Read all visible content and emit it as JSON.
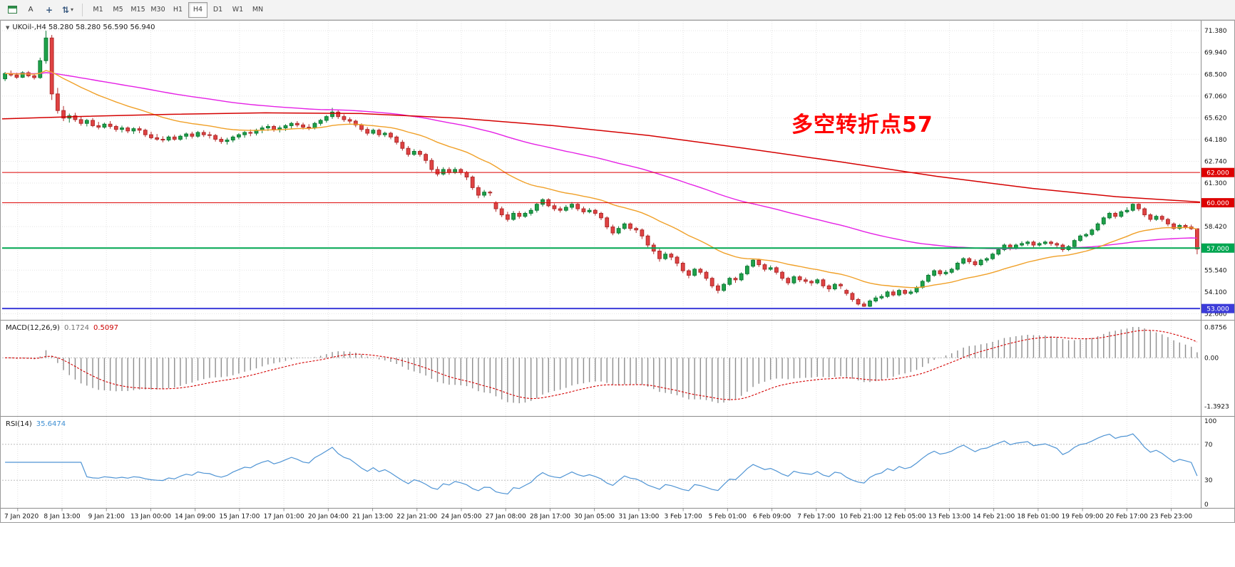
{
  "toolbar": {
    "text_tool_label": "A",
    "timeframes": [
      {
        "label": "M1",
        "active": false
      },
      {
        "label": "M5",
        "active": false
      },
      {
        "label": "M15",
        "active": false
      },
      {
        "label": "M30",
        "active": false
      },
      {
        "label": "H1",
        "active": false
      },
      {
        "label": "H4",
        "active": true
      },
      {
        "label": "D1",
        "active": false
      },
      {
        "label": "W1",
        "active": false
      },
      {
        "label": "MN",
        "active": false
      }
    ]
  },
  "chart": {
    "symbol_title": "UKOil-,H4 58.280 58.280 56.590 56.940",
    "annotation": {
      "text": "多空转折点57",
      "color": "#ff0000"
    },
    "macd_label": {
      "name": "MACD(12,26,9)",
      "value": "0.1724",
      "signal_value": "0.5097"
    },
    "rsi_label": {
      "name": "RSI(14)",
      "value": "35.6474"
    }
  },
  "chart_data": {
    "type": "candlestick",
    "symbol": "UKOil-",
    "timeframe": "H4",
    "last_ohlc": {
      "open": "58.280",
      "high": "58.280",
      "low": "56.590",
      "close": "56.940"
    },
    "colors": {
      "up": "#1fa24a",
      "up_border": "#0c7a34",
      "down": "#e04343",
      "down_border": "#b02a2a",
      "grid": "#e3e3e3"
    },
    "y_axis": {
      "min": 52.3,
      "max": 72.0,
      "ticks": [
        "71.380",
        "69.940",
        "68.500",
        "67.060",
        "65.620",
        "64.180",
        "62.740",
        "61.300",
        "59.860",
        "58.420",
        "56.980",
        "55.540",
        "54.100",
        "52.660"
      ]
    },
    "x_ticks": [
      "7 Jan 2020",
      "8 Jan 13:00",
      "9 Jan 21:00",
      "13 Jan 00:00",
      "14 Jan 09:00",
      "15 Jan 17:00",
      "17 Jan 01:00",
      "20 Jan 04:00",
      "21 Jan 13:00",
      "22 Jan 21:00",
      "24 Jan 05:00",
      "27 Jan 08:00",
      "28 Jan 17:00",
      "30 Jan 05:00",
      "31 Jan 13:00",
      "3 Feb 17:00",
      "5 Feb 01:00",
      "6 Feb 09:00",
      "7 Feb 17:00",
      "10 Feb 21:00",
      "12 Feb 05:00",
      "13 Feb 13:00",
      "14 Feb 21:00",
      "18 Feb 01:00",
      "19 Feb 09:00",
      "20 Feb 17:00",
      "23 Feb 23:00"
    ],
    "levels": [
      {
        "value": 62.0,
        "label": "62.000",
        "color": "#dd0000",
        "width": 1
      },
      {
        "value": 60.0,
        "label": "60.000",
        "color": "#dd0000",
        "width": 1
      },
      {
        "value": 57.0,
        "label": "57.000",
        "color": "#00a651",
        "width": 2
      },
      {
        "value": 53.0,
        "label": "53.000",
        "color": "#3c3cd9",
        "width": 2
      }
    ],
    "moving_averages": {
      "fast": {
        "type": "ema",
        "period": 25,
        "color": "#f0a028"
      },
      "medium": {
        "type": "ema",
        "period": 90,
        "color": "#e520e5"
      },
      "slow_red": {
        "color": "#d40000",
        "points": [
          [
            0.0,
            65.55
          ],
          [
            0.06,
            65.7
          ],
          [
            0.14,
            65.85
          ],
          [
            0.22,
            65.95
          ],
          [
            0.3,
            65.9
          ],
          [
            0.38,
            65.6
          ],
          [
            0.46,
            65.1
          ],
          [
            0.54,
            64.45
          ],
          [
            0.62,
            63.6
          ],
          [
            0.7,
            62.7
          ],
          [
            0.78,
            61.75
          ],
          [
            0.86,
            60.95
          ],
          [
            0.93,
            60.4
          ],
          [
            1.0,
            60.05
          ]
        ]
      }
    },
    "macd": {
      "fast": 12,
      "slow": 26,
      "signal": 9,
      "value": 0.1724,
      "signal_value": 0.5097,
      "range": [
        -1.65,
        1.05
      ],
      "ticks": [
        "0.8756",
        "0.00",
        "-1.3923"
      ],
      "hist_color": "#8e8e8e",
      "signal_color": "#d40000"
    },
    "rsi": {
      "period": 14,
      "value": 35.6474,
      "range": [
        0,
        100
      ],
      "ticks": [
        100,
        70,
        30,
        0
      ],
      "levels": [
        70,
        30
      ],
      "color": "#4f94d4"
    },
    "candles": [
      [
        68.2,
        68.65,
        68.05,
        68.55
      ],
      [
        68.55,
        68.75,
        68.35,
        68.45
      ],
      [
        68.45,
        68.6,
        68.2,
        68.3
      ],
      [
        68.3,
        68.7,
        68.25,
        68.6
      ],
      [
        68.6,
        68.72,
        68.3,
        68.4
      ],
      [
        68.4,
        68.55,
        68.15,
        68.28
      ],
      [
        68.28,
        69.6,
        68.2,
        69.4
      ],
      [
        69.4,
        71.38,
        69.2,
        70.9
      ],
      [
        70.9,
        71.1,
        66.8,
        67.2
      ],
      [
        67.2,
        67.6,
        65.9,
        66.1
      ],
      [
        66.1,
        66.4,
        65.4,
        65.6
      ],
      [
        65.6,
        65.9,
        65.3,
        65.75
      ],
      [
        65.75,
        65.95,
        65.35,
        65.5
      ],
      [
        65.5,
        65.7,
        65.1,
        65.25
      ],
      [
        65.25,
        65.55,
        65.05,
        65.45
      ],
      [
        65.45,
        65.6,
        65.0,
        65.1
      ],
      [
        65.1,
        65.35,
        64.85,
        65.0
      ],
      [
        65.0,
        65.3,
        64.9,
        65.2
      ],
      [
        65.2,
        65.4,
        64.9,
        65.05
      ],
      [
        65.05,
        65.15,
        64.7,
        64.85
      ],
      [
        64.85,
        65.1,
        64.65,
        64.95
      ],
      [
        64.95,
        65.05,
        64.6,
        64.75
      ],
      [
        64.75,
        65.0,
        64.55,
        64.9
      ],
      [
        64.9,
        65.05,
        64.6,
        64.8
      ],
      [
        64.8,
        64.9,
        64.35,
        64.5
      ],
      [
        64.5,
        64.7,
        64.2,
        64.3
      ],
      [
        64.3,
        64.55,
        64.1,
        64.2
      ],
      [
        64.2,
        64.4,
        64.0,
        64.15
      ],
      [
        64.15,
        64.45,
        64.05,
        64.35
      ],
      [
        64.35,
        64.5,
        64.1,
        64.2
      ],
      [
        64.2,
        64.5,
        64.1,
        64.4
      ],
      [
        64.4,
        64.65,
        64.2,
        64.55
      ],
      [
        64.55,
        64.7,
        64.25,
        64.4
      ],
      [
        64.4,
        64.75,
        64.3,
        64.65
      ],
      [
        64.65,
        64.8,
        64.35,
        64.5
      ],
      [
        64.5,
        64.7,
        64.25,
        64.45
      ],
      [
        64.45,
        64.55,
        64.05,
        64.2
      ],
      [
        64.2,
        64.35,
        63.9,
        64.05
      ],
      [
        64.05,
        64.3,
        63.85,
        64.15
      ],
      [
        64.15,
        64.45,
        64.0,
        64.35
      ],
      [
        64.35,
        64.6,
        64.2,
        64.5
      ],
      [
        64.5,
        64.75,
        64.3,
        64.65
      ],
      [
        64.65,
        64.85,
        64.4,
        64.6
      ],
      [
        64.6,
        64.9,
        64.45,
        64.8
      ],
      [
        64.8,
        65.1,
        64.6,
        64.95
      ],
      [
        64.95,
        65.2,
        64.75,
        65.05
      ],
      [
        65.05,
        65.15,
        64.7,
        64.85
      ],
      [
        64.85,
        65.1,
        64.65,
        64.95
      ],
      [
        64.95,
        65.2,
        64.75,
        65.1
      ],
      [
        65.1,
        65.35,
        64.9,
        65.25
      ],
      [
        65.25,
        65.4,
        65.0,
        65.15
      ],
      [
        65.15,
        65.3,
        64.85,
        65.0
      ],
      [
        65.0,
        65.2,
        64.8,
        64.95
      ],
      [
        64.95,
        65.35,
        64.85,
        65.25
      ],
      [
        65.25,
        65.55,
        65.1,
        65.45
      ],
      [
        65.45,
        65.8,
        65.3,
        65.7
      ],
      [
        65.7,
        66.28,
        65.55,
        66.0
      ],
      [
        66.0,
        66.15,
        65.55,
        65.7
      ],
      [
        65.7,
        65.85,
        65.35,
        65.5
      ],
      [
        65.5,
        65.65,
        65.25,
        65.4
      ],
      [
        65.4,
        65.5,
        65.0,
        65.15
      ],
      [
        65.15,
        65.25,
        64.7,
        64.85
      ],
      [
        64.85,
        65.0,
        64.45,
        64.6
      ],
      [
        64.6,
        64.9,
        64.5,
        64.8
      ],
      [
        64.8,
        64.9,
        64.35,
        64.5
      ],
      [
        64.5,
        64.7,
        64.35,
        64.6
      ],
      [
        64.6,
        64.7,
        64.2,
        64.35
      ],
      [
        64.35,
        64.45,
        63.85,
        64.0
      ],
      [
        64.0,
        64.15,
        63.45,
        63.6
      ],
      [
        63.6,
        63.75,
        63.05,
        63.2
      ],
      [
        63.2,
        63.55,
        63.1,
        63.4
      ],
      [
        63.4,
        63.5,
        63.05,
        63.2
      ],
      [
        63.2,
        63.3,
        62.6,
        62.8
      ],
      [
        62.8,
        62.95,
        62.05,
        62.2
      ],
      [
        62.2,
        62.4,
        61.75,
        61.9
      ],
      [
        61.9,
        62.35,
        61.8,
        62.2
      ],
      [
        62.2,
        62.35,
        61.85,
        62.0
      ],
      [
        62.0,
        62.35,
        61.9,
        62.2
      ],
      [
        62.2,
        62.3,
        61.85,
        62.0
      ],
      [
        62.0,
        62.1,
        61.5,
        61.7
      ],
      [
        61.7,
        61.8,
        60.85,
        61.0
      ],
      [
        61.0,
        61.15,
        60.3,
        60.5
      ],
      [
        60.5,
        60.85,
        60.35,
        60.7
      ],
      [
        60.7,
        60.8,
        60.45,
        60.65
      ],
      [
        60.0,
        60.1,
        59.4,
        59.6
      ],
      [
        59.6,
        59.75,
        59.05,
        59.2
      ],
      [
        59.2,
        59.4,
        58.75,
        58.9
      ],
      [
        58.9,
        59.45,
        58.8,
        59.3
      ],
      [
        59.3,
        59.45,
        58.95,
        59.1
      ],
      [
        59.1,
        59.4,
        59.0,
        59.3
      ],
      [
        59.3,
        59.65,
        59.15,
        59.5
      ],
      [
        59.5,
        60.0,
        59.35,
        59.9
      ],
      [
        59.9,
        60.3,
        59.75,
        60.2
      ],
      [
        60.2,
        60.3,
        59.7,
        59.8
      ],
      [
        59.8,
        59.95,
        59.45,
        59.6
      ],
      [
        59.6,
        59.75,
        59.35,
        59.5
      ],
      [
        59.5,
        59.85,
        59.4,
        59.7
      ],
      [
        59.7,
        60.05,
        59.55,
        59.9
      ],
      [
        59.9,
        60.0,
        59.45,
        59.6
      ],
      [
        59.6,
        59.75,
        59.25,
        59.4
      ],
      [
        59.4,
        59.65,
        59.3,
        59.5
      ],
      [
        59.5,
        59.6,
        59.15,
        59.3
      ],
      [
        59.3,
        59.4,
        58.85,
        59.0
      ],
      [
        59.0,
        59.1,
        58.25,
        58.4
      ],
      [
        58.4,
        58.55,
        57.85,
        58.0
      ],
      [
        58.0,
        58.45,
        57.9,
        58.3
      ],
      [
        58.3,
        58.7,
        58.2,
        58.6
      ],
      [
        58.6,
        58.7,
        58.15,
        58.3
      ],
      [
        58.3,
        58.4,
        58.0,
        58.2
      ],
      [
        58.2,
        58.3,
        57.6,
        57.8
      ],
      [
        57.8,
        57.9,
        57.05,
        57.2
      ],
      [
        57.2,
        57.35,
        56.6,
        56.8
      ],
      [
        56.8,
        56.95,
        56.1,
        56.3
      ],
      [
        56.3,
        56.75,
        56.2,
        56.6
      ],
      [
        56.6,
        56.7,
        56.2,
        56.4
      ],
      [
        56.4,
        56.5,
        55.8,
        56.0
      ],
      [
        56.0,
        56.1,
        55.35,
        55.5
      ],
      [
        55.5,
        55.6,
        55.0,
        55.2
      ],
      [
        55.2,
        55.7,
        55.1,
        55.6
      ],
      [
        55.6,
        55.7,
        55.25,
        55.4
      ],
      [
        55.4,
        55.5,
        54.85,
        55.0
      ],
      [
        55.0,
        55.1,
        54.35,
        54.5
      ],
      [
        54.5,
        54.65,
        54.0,
        54.2
      ],
      [
        54.2,
        54.7,
        54.1,
        54.6
      ],
      [
        54.6,
        55.1,
        54.5,
        55.0
      ],
      [
        55.0,
        55.1,
        54.7,
        54.9
      ],
      [
        54.9,
        55.4,
        54.8,
        55.3
      ],
      [
        55.3,
        55.9,
        55.2,
        55.8
      ],
      [
        55.8,
        56.3,
        55.7,
        56.2
      ],
      [
        56.2,
        56.3,
        55.75,
        55.9
      ],
      [
        55.9,
        56.0,
        55.45,
        55.6
      ],
      [
        55.6,
        55.85,
        55.5,
        55.7
      ],
      [
        55.7,
        55.8,
        55.25,
        55.4
      ],
      [
        55.4,
        55.5,
        54.85,
        55.0
      ],
      [
        55.0,
        55.1,
        54.55,
        54.7
      ],
      [
        54.7,
        55.2,
        54.6,
        55.1
      ],
      [
        55.1,
        55.2,
        54.75,
        54.9
      ],
      [
        54.9,
        55.05,
        54.65,
        54.8
      ],
      [
        54.8,
        54.9,
        54.5,
        54.7
      ],
      [
        54.7,
        55.0,
        54.6,
        54.9
      ],
      [
        54.9,
        55.0,
        54.35,
        54.5
      ],
      [
        54.5,
        54.6,
        54.1,
        54.3
      ],
      [
        54.3,
        54.7,
        54.2,
        54.6
      ],
      [
        54.6,
        54.7,
        54.3,
        54.5
      ],
      [
        54.2,
        54.3,
        53.85,
        54.0
      ],
      [
        54.0,
        54.1,
        53.45,
        53.6
      ],
      [
        53.6,
        53.7,
        53.2,
        53.3
      ],
      [
        53.3,
        53.45,
        53.11,
        53.15
      ],
      [
        53.15,
        53.6,
        53.1,
        53.5
      ],
      [
        53.5,
        53.85,
        53.4,
        53.7
      ],
      [
        53.7,
        53.95,
        53.6,
        53.8
      ],
      [
        53.8,
        54.2,
        53.7,
        54.1
      ],
      [
        54.1,
        54.25,
        53.8,
        53.9
      ],
      [
        53.9,
        54.3,
        53.8,
        54.2
      ],
      [
        54.2,
        54.3,
        53.9,
        54.0
      ],
      [
        54.0,
        54.25,
        53.9,
        54.1
      ],
      [
        54.1,
        54.5,
        54.0,
        54.4
      ],
      [
        54.4,
        54.9,
        54.3,
        54.8
      ],
      [
        54.8,
        55.3,
        54.7,
        55.2
      ],
      [
        55.2,
        55.6,
        55.1,
        55.5
      ],
      [
        55.5,
        55.6,
        55.15,
        55.3
      ],
      [
        55.3,
        55.55,
        55.2,
        55.4
      ],
      [
        55.4,
        55.7,
        55.3,
        55.6
      ],
      [
        55.6,
        56.1,
        55.5,
        56.0
      ],
      [
        56.0,
        56.4,
        55.9,
        56.3
      ],
      [
        56.3,
        56.4,
        55.95,
        56.1
      ],
      [
        56.1,
        56.25,
        55.8,
        55.9
      ],
      [
        55.9,
        56.3,
        55.8,
        56.2
      ],
      [
        56.2,
        56.4,
        56.05,
        56.3
      ],
      [
        56.3,
        56.7,
        56.2,
        56.6
      ],
      [
        56.6,
        57.0,
        56.5,
        56.9
      ],
      [
        56.9,
        57.3,
        56.8,
        57.2
      ],
      [
        57.2,
        57.3,
        56.85,
        57.0
      ],
      [
        57.0,
        57.3,
        56.9,
        57.2
      ],
      [
        57.2,
        57.45,
        57.1,
        57.3
      ],
      [
        57.3,
        57.5,
        57.15,
        57.4
      ],
      [
        57.4,
        57.5,
        57.05,
        57.2
      ],
      [
        57.2,
        57.4,
        57.1,
        57.3
      ],
      [
        57.3,
        57.5,
        57.2,
        57.4
      ],
      [
        57.4,
        57.5,
        57.15,
        57.3
      ],
      [
        57.3,
        57.4,
        57.0,
        57.2
      ],
      [
        57.2,
        57.3,
        56.75,
        56.9
      ],
      [
        56.9,
        57.2,
        56.8,
        57.1
      ],
      [
        57.1,
        57.6,
        57.0,
        57.5
      ],
      [
        57.5,
        57.9,
        57.4,
        57.8
      ],
      [
        57.8,
        58.0,
        57.7,
        57.9
      ],
      [
        57.9,
        58.3,
        57.8,
        58.2
      ],
      [
        58.2,
        58.7,
        58.1,
        58.6
      ],
      [
        58.6,
        59.1,
        58.5,
        59.0
      ],
      [
        59.0,
        59.4,
        58.9,
        59.3
      ],
      [
        59.3,
        59.4,
        58.95,
        59.1
      ],
      [
        59.1,
        59.5,
        59.0,
        59.4
      ],
      [
        59.4,
        59.7,
        59.3,
        59.5
      ],
      [
        59.5,
        59.96,
        59.4,
        59.9
      ],
      [
        59.9,
        59.96,
        59.45,
        59.6
      ],
      [
        59.6,
        59.7,
        59.05,
        59.2
      ],
      [
        59.2,
        59.3,
        58.75,
        58.9
      ],
      [
        58.9,
        59.2,
        58.8,
        59.1
      ],
      [
        59.1,
        59.2,
        58.75,
        58.9
      ],
      [
        58.9,
        59.0,
        58.45,
        58.6
      ],
      [
        58.6,
        58.7,
        58.2,
        58.3
      ],
      [
        58.3,
        58.6,
        58.2,
        58.5
      ],
      [
        58.5,
        58.6,
        58.25,
        58.4
      ],
      [
        58.4,
        58.55,
        58.2,
        58.28
      ],
      [
        58.28,
        58.28,
        56.59,
        56.94
      ]
    ]
  }
}
